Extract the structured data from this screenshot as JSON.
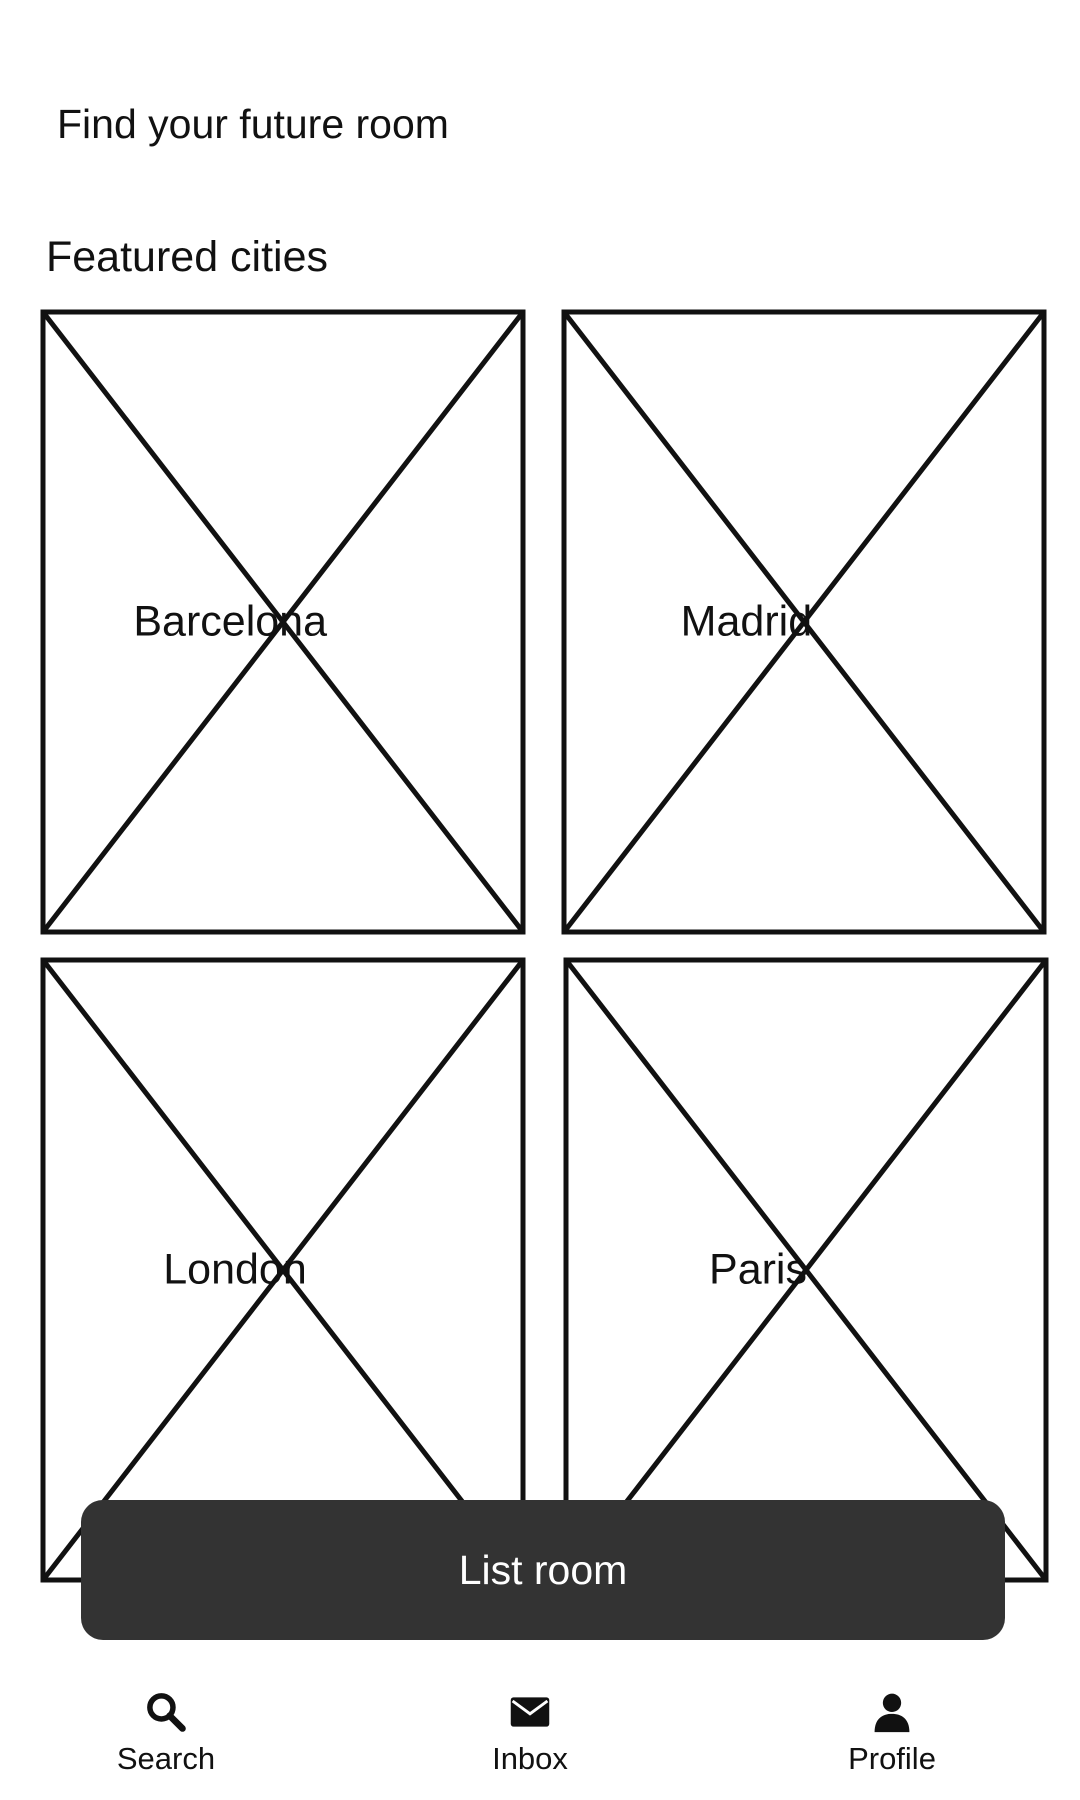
{
  "header": {
    "title": "Find your future room"
  },
  "featured": {
    "section_title": "Featured cities",
    "cities": [
      {
        "name": "Barcelona"
      },
      {
        "name": "Madrid"
      },
      {
        "name": "London"
      },
      {
        "name": "Paris"
      }
    ]
  },
  "actions": {
    "list_room_label": "List room"
  },
  "bottom_nav": {
    "items": [
      {
        "label": "Search",
        "icon": "search-icon"
      },
      {
        "label": "Inbox",
        "icon": "mail-icon"
      },
      {
        "label": "Profile",
        "icon": "person-icon"
      }
    ]
  },
  "colors": {
    "background": "#ffffff",
    "text": "#111111",
    "button_bg": "#333333",
    "button_text": "#ffffff"
  }
}
